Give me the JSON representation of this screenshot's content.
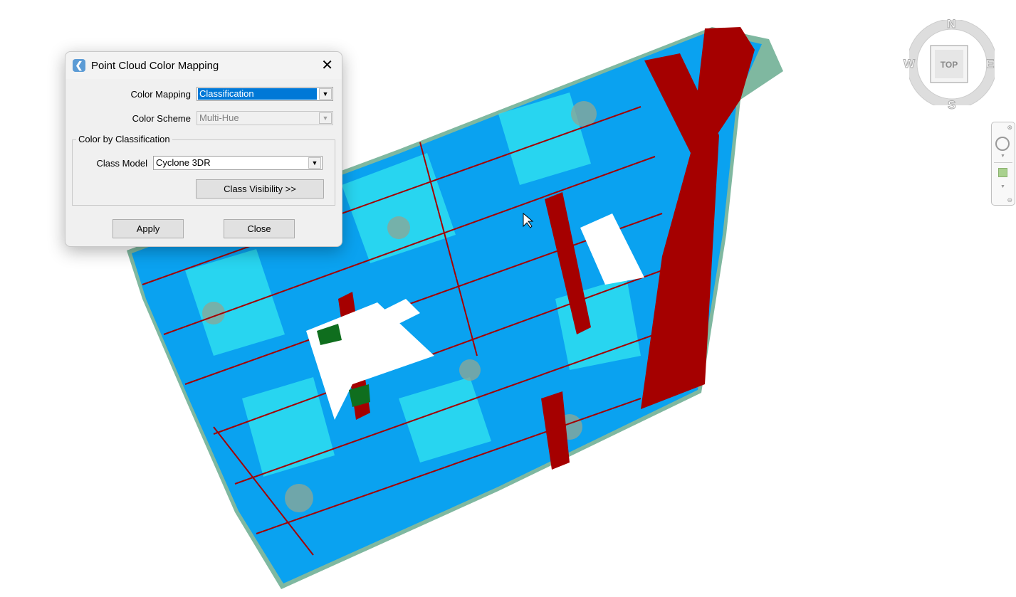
{
  "dialog": {
    "title": "Point Cloud Color Mapping",
    "icon": "app-logo-icon",
    "close_icon": "close-icon",
    "color_mapping": {
      "label": "Color Mapping",
      "value": "Classification"
    },
    "color_scheme": {
      "label": "Color Scheme",
      "value": "Multi-Hue",
      "disabled": true
    },
    "group": {
      "label": "Color by Classification",
      "class_model": {
        "label": "Class Model",
        "value": "Cyclone 3DR"
      },
      "class_visibility_button": "Class Visibility >>"
    },
    "apply_button": "Apply",
    "close_button": "Close"
  },
  "viewcube": {
    "face": "TOP",
    "north": "N",
    "south": "S",
    "east": "E",
    "west": "W"
  },
  "navbar": {
    "icons": [
      "close-icon",
      "steering-wheel-icon",
      "zoom-extents-icon",
      "minimize-icon"
    ]
  },
  "colors": {
    "ground_blue": "#0aa2f0",
    "building_red": "#a50000",
    "vegetation_cyan": "#33e6f0",
    "gray_green": "#7fae9a",
    "dark_green": "#0f6e1e",
    "selection": "#0078d7"
  }
}
